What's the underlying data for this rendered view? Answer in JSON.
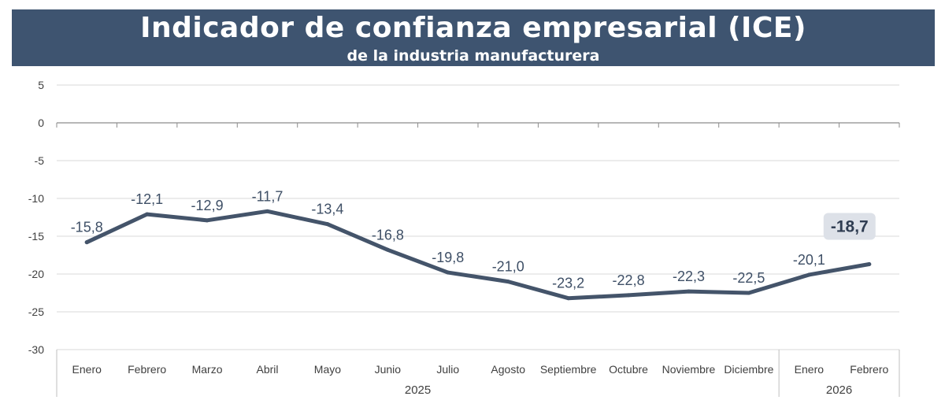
{
  "header": {
    "title": "Indicador de confianza empresarial (ICE)",
    "subtitle": "de la industria manufacturera"
  },
  "colors": {
    "banner": "#3e5470",
    "line": "#44546a",
    "highlight_bg": "#dde1e8"
  },
  "chart_data": {
    "type": "line",
    "title": "Indicador de confianza empresarial (ICE)",
    "subtitle": "de la industria manufacturera",
    "categories": [
      "Enero",
      "Febrero",
      "Marzo",
      "Abril",
      "Mayo",
      "Junio",
      "Julio",
      "Agosto",
      "Septiembre",
      "Octubre",
      "Noviembre",
      "Diciembre",
      "Enero",
      "Febrero"
    ],
    "values": [
      -15.8,
      -12.1,
      -12.9,
      -11.7,
      -13.4,
      -16.8,
      -19.8,
      -21.0,
      -23.2,
      -22.8,
      -22.3,
      -22.5,
      -20.1,
      -18.7
    ],
    "data_labels": [
      "-15,8",
      "-12,1",
      "-12,9",
      "-11,7",
      "-13,4",
      "-16,8",
      "-19,8",
      "-21,0",
      "-23,2",
      "-22,8",
      "-22,3",
      "-22,5",
      "-20,1",
      "-18,7"
    ],
    "year_groups": [
      {
        "label": "2025",
        "count": 12
      },
      {
        "label": "2026",
        "count": 2
      }
    ],
    "y_ticks": [
      5,
      0,
      -5,
      -10,
      -15,
      -20,
      -25,
      -30
    ],
    "y_tick_labels": [
      "5",
      "0",
      "-5",
      "-10",
      "-15",
      "-20",
      "-25",
      "-30"
    ],
    "ylim": [
      -30,
      5
    ],
    "grid": true,
    "legend": "none",
    "highlight_last": true
  }
}
